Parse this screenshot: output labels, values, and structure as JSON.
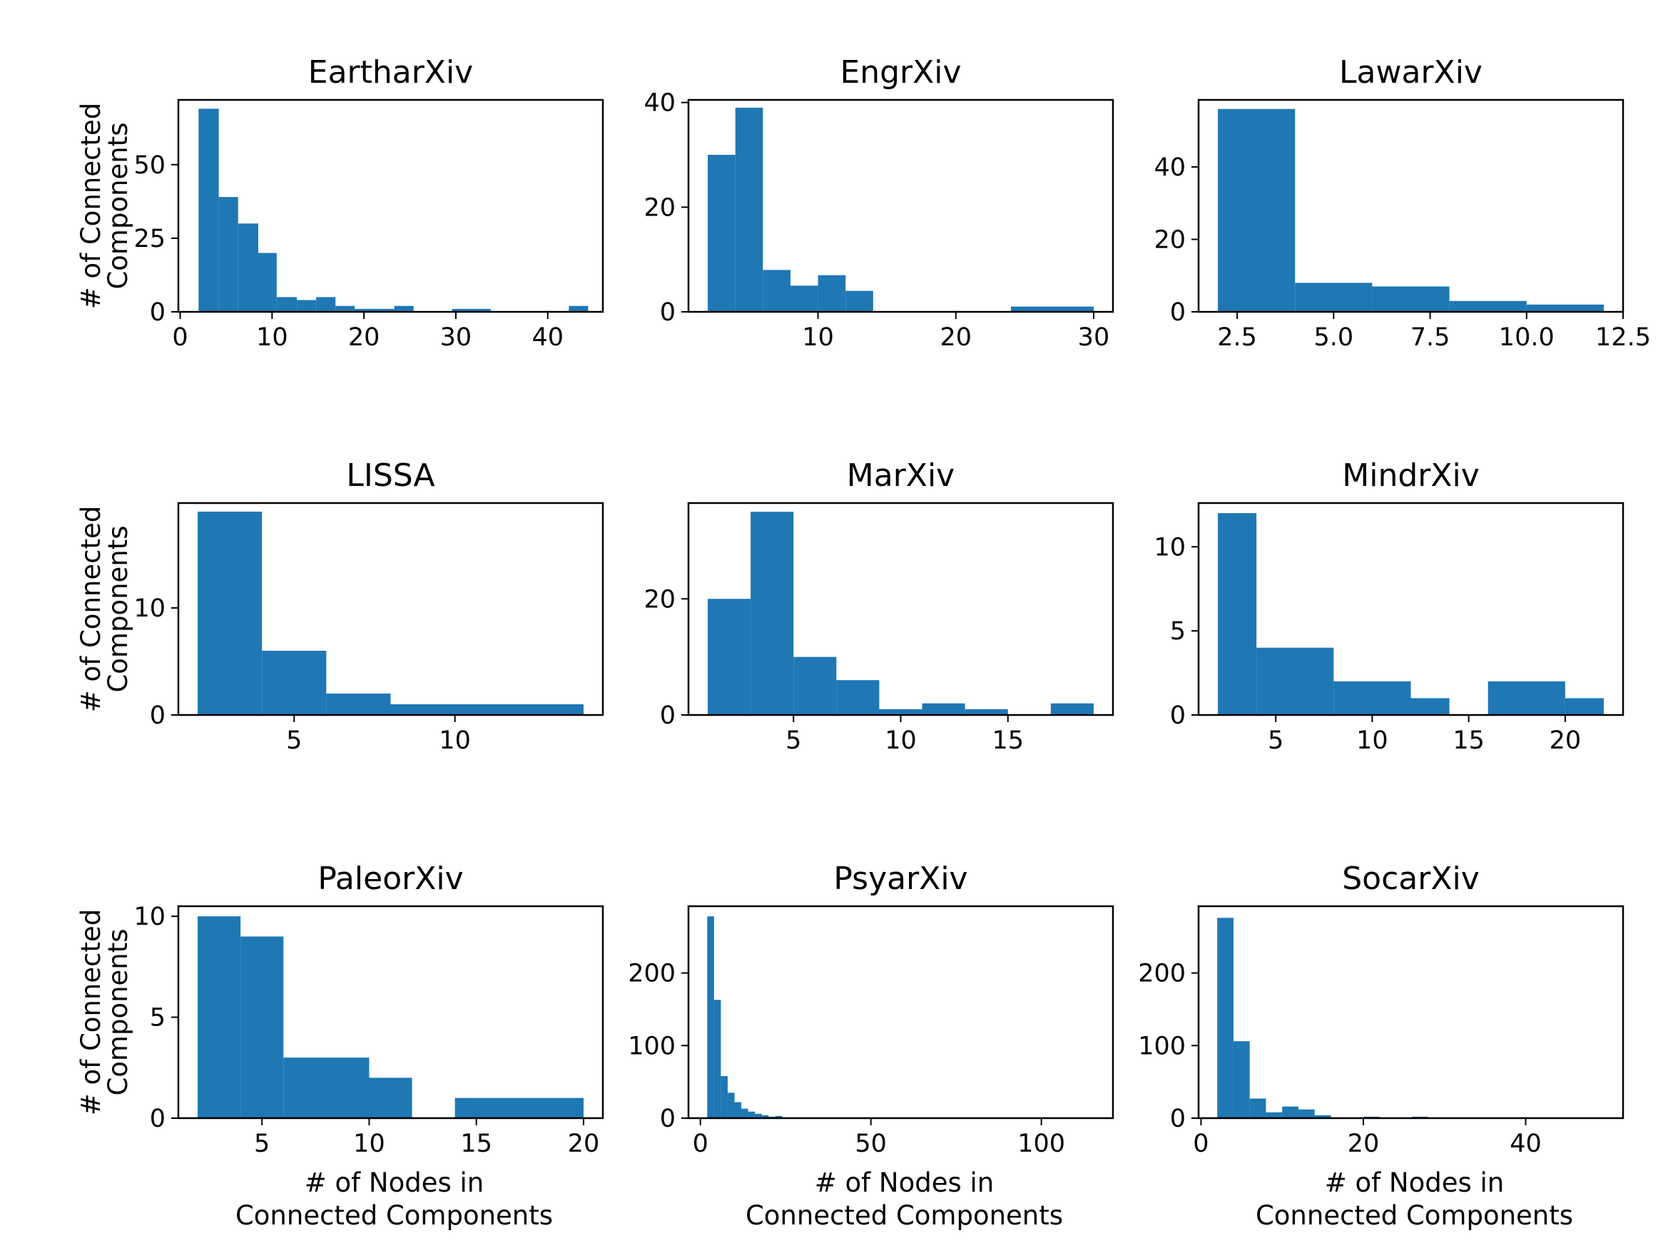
{
  "colors": {
    "bar": "#1f77b4",
    "axis": "#000000",
    "background": "#ffffff"
  },
  "chart_data": [
    {
      "type": "bar",
      "title": "EartharXiv",
      "ylabel": [
        "# of Connected",
        "Components"
      ],
      "xlabel": [],
      "xlim": [
        -0.2,
        46
      ],
      "ylim": [
        0,
        72
      ],
      "xticks": [
        0,
        10,
        20,
        30,
        40
      ],
      "xtick_labels": [
        "0",
        "10",
        "20",
        "30",
        "40"
      ],
      "yticks": [
        0,
        25,
        50
      ],
      "ytick_labels": [
        "0",
        "25",
        "50"
      ],
      "bins": [
        {
          "x0": 2,
          "x1": 4.2,
          "y": 69
        },
        {
          "x0": 4.2,
          "x1": 6.3,
          "y": 39
        },
        {
          "x0": 6.3,
          "x1": 8.5,
          "y": 30
        },
        {
          "x0": 8.5,
          "x1": 10.5,
          "y": 20
        },
        {
          "x0": 10.5,
          "x1": 12.7,
          "y": 5
        },
        {
          "x0": 12.7,
          "x1": 14.8,
          "y": 4
        },
        {
          "x0": 14.8,
          "x1": 16.9,
          "y": 5
        },
        {
          "x0": 16.9,
          "x1": 19.0,
          "y": 2
        },
        {
          "x0": 19.0,
          "x1": 21.2,
          "y": 1
        },
        {
          "x0": 21.2,
          "x1": 23.3,
          "y": 1
        },
        {
          "x0": 23.3,
          "x1": 25.4,
          "y": 2
        },
        {
          "x0": 29.6,
          "x1": 31.7,
          "y": 1
        },
        {
          "x0": 31.7,
          "x1": 33.8,
          "y": 1
        },
        {
          "x0": 42.3,
          "x1": 44.4,
          "y": 2
        }
      ]
    },
    {
      "type": "bar",
      "title": "EngrXiv",
      "ylabel": [],
      "xlabel": [],
      "xlim": [
        0.6,
        31.4
      ],
      "ylim": [
        0,
        40.5
      ],
      "xticks": [
        10,
        20,
        30
      ],
      "xtick_labels": [
        "10",
        "20",
        "30"
      ],
      "yticks": [
        0,
        20,
        40
      ],
      "ytick_labels": [
        "0",
        "20",
        "40"
      ],
      "bins": [
        {
          "x0": 2,
          "x1": 4,
          "y": 30
        },
        {
          "x0": 4,
          "x1": 6,
          "y": 39
        },
        {
          "x0": 6,
          "x1": 8,
          "y": 8
        },
        {
          "x0": 8,
          "x1": 10,
          "y": 5
        },
        {
          "x0": 10,
          "x1": 12,
          "y": 7
        },
        {
          "x0": 12,
          "x1": 14,
          "y": 4
        },
        {
          "x0": 24,
          "x1": 30,
          "y": 1
        }
      ]
    },
    {
      "type": "bar",
      "title": "LawarXiv",
      "ylabel": [],
      "xlabel": [],
      "xlim": [
        1.5,
        12.5
      ],
      "ylim": [
        0,
        58.5
      ],
      "xticks": [
        2.5,
        5.0,
        7.5,
        10.0,
        12.5
      ],
      "xtick_labels": [
        "2.5",
        "5.0",
        "7.5",
        "10.0",
        "12.5"
      ],
      "yticks": [
        0,
        20,
        40
      ],
      "ytick_labels": [
        "0",
        "20",
        "40"
      ],
      "bins": [
        {
          "x0": 2,
          "x1": 4,
          "y": 56
        },
        {
          "x0": 4,
          "x1": 6,
          "y": 8
        },
        {
          "x0": 6,
          "x1": 8,
          "y": 7
        },
        {
          "x0": 8,
          "x1": 10,
          "y": 3
        },
        {
          "x0": 10,
          "x1": 12,
          "y": 2
        }
      ]
    },
    {
      "type": "bar",
      "title": "LISSA",
      "ylabel": [
        "# of Connected",
        "Components"
      ],
      "xlabel": [],
      "xlim": [
        1.4,
        14.6
      ],
      "ylim": [
        0,
        19.8
      ],
      "xticks": [
        5,
        10
      ],
      "xtick_labels": [
        "5",
        "10"
      ],
      "yticks": [
        0,
        10
      ],
      "ytick_labels": [
        "0",
        "10"
      ],
      "bins": [
        {
          "x0": 2,
          "x1": 4,
          "y": 19
        },
        {
          "x0": 4,
          "x1": 6,
          "y": 6
        },
        {
          "x0": 6,
          "x1": 8,
          "y": 2
        },
        {
          "x0": 8,
          "x1": 14,
          "y": 1
        }
      ]
    },
    {
      "type": "bar",
      "title": "MarXiv",
      "ylabel": [],
      "xlabel": [],
      "xlim": [
        0.1,
        19.9
      ],
      "ylim": [
        0,
        36.5
      ],
      "xticks": [
        5,
        10,
        15
      ],
      "xtick_labels": [
        "5",
        "10",
        "15"
      ],
      "yticks": [
        0,
        20
      ],
      "ytick_labels": [
        "0",
        "20"
      ],
      "bins": [
        {
          "x0": 1,
          "x1": 3,
          "y": 20
        },
        {
          "x0": 3,
          "x1": 5,
          "y": 35
        },
        {
          "x0": 5,
          "x1": 7,
          "y": 10
        },
        {
          "x0": 7,
          "x1": 9,
          "y": 6
        },
        {
          "x0": 9,
          "x1": 11,
          "y": 1
        },
        {
          "x0": 11,
          "x1": 13,
          "y": 2
        },
        {
          "x0": 13,
          "x1": 15,
          "y": 1
        },
        {
          "x0": 17,
          "x1": 19,
          "y": 2
        }
      ]
    },
    {
      "type": "bar",
      "title": "MindrXiv",
      "ylabel": [],
      "xlabel": [],
      "xlim": [
        1.0,
        23.0
      ],
      "ylim": [
        0,
        12.6
      ],
      "xticks": [
        5,
        10,
        15,
        20
      ],
      "xtick_labels": [
        "5",
        "10",
        "15",
        "20"
      ],
      "yticks": [
        0,
        5,
        10
      ],
      "ytick_labels": [
        "0",
        "5",
        "10"
      ],
      "bins": [
        {
          "x0": 2,
          "x1": 4,
          "y": 12
        },
        {
          "x0": 4,
          "x1": 8,
          "y": 4
        },
        {
          "x0": 8,
          "x1": 12,
          "y": 2
        },
        {
          "x0": 12,
          "x1": 14,
          "y": 1
        },
        {
          "x0": 16,
          "x1": 20,
          "y": 2
        },
        {
          "x0": 20,
          "x1": 22,
          "y": 1
        }
      ]
    },
    {
      "type": "bar",
      "title": "PaleorXiv",
      "ylabel": [
        "# of Connected",
        "Components"
      ],
      "xlabel": [
        "# of Nodes in",
        "Connected Components"
      ],
      "xlim": [
        1.1,
        20.9
      ],
      "ylim": [
        0,
        10.5
      ],
      "xticks": [
        5,
        10,
        15,
        20
      ],
      "xtick_labels": [
        "5",
        "10",
        "15",
        "20"
      ],
      "yticks": [
        0,
        5,
        10
      ],
      "ytick_labels": [
        "0",
        "5",
        "10"
      ],
      "bins": [
        {
          "x0": 2,
          "x1": 4,
          "y": 10
        },
        {
          "x0": 4,
          "x1": 6,
          "y": 9
        },
        {
          "x0": 6,
          "x1": 10,
          "y": 3
        },
        {
          "x0": 10,
          "x1": 12,
          "y": 2
        },
        {
          "x0": 14,
          "x1": 20,
          "y": 1
        }
      ]
    },
    {
      "type": "bar",
      "title": "PsyarXiv",
      "ylabel": [],
      "xlabel": [
        "# of Nodes in",
        "Connected Components"
      ],
      "xlim": [
        -3.5,
        121
      ],
      "ylim": [
        0,
        292
      ],
      "xticks": [
        0,
        50,
        100
      ],
      "xtick_labels": [
        "0",
        "50",
        "100"
      ],
      "yticks": [
        0,
        100,
        200
      ],
      "ytick_labels": [
        "0",
        "100",
        "200"
      ],
      "bins": [
        {
          "x0": 2,
          "x1": 4,
          "y": 278
        },
        {
          "x0": 4,
          "x1": 6,
          "y": 163
        },
        {
          "x0": 6,
          "x1": 8,
          "y": 58
        },
        {
          "x0": 8,
          "x1": 10,
          "y": 35
        },
        {
          "x0": 10,
          "x1": 12,
          "y": 22
        },
        {
          "x0": 12,
          "x1": 14,
          "y": 13
        },
        {
          "x0": 14,
          "x1": 16,
          "y": 9
        },
        {
          "x0": 16,
          "x1": 18,
          "y": 6
        },
        {
          "x0": 18,
          "x1": 20,
          "y": 4
        },
        {
          "x0": 20,
          "x1": 22,
          "y": 2
        },
        {
          "x0": 22,
          "x1": 24,
          "y": 3
        },
        {
          "x0": 24,
          "x1": 115,
          "y": 1
        }
      ]
    },
    {
      "type": "bar",
      "title": "SocarXiv",
      "ylabel": [],
      "xlabel": [
        "# of Nodes in",
        "Connected Components"
      ],
      "xlim": [
        -0.3,
        52
      ],
      "ylim": [
        0,
        292
      ],
      "xticks": [
        0,
        20,
        40
      ],
      "xtick_labels": [
        "0",
        "20",
        "40"
      ],
      "yticks": [
        0,
        100,
        200
      ],
      "ytick_labels": [
        "0",
        "100",
        "200"
      ],
      "bins": [
        {
          "x0": 2,
          "x1": 4,
          "y": 276
        },
        {
          "x0": 4,
          "x1": 6,
          "y": 106
        },
        {
          "x0": 6,
          "x1": 8,
          "y": 27
        },
        {
          "x0": 8,
          "x1": 10,
          "y": 8
        },
        {
          "x0": 10,
          "x1": 12,
          "y": 16
        },
        {
          "x0": 12,
          "x1": 14,
          "y": 12
        },
        {
          "x0": 14,
          "x1": 16,
          "y": 4
        },
        {
          "x0": 16,
          "x1": 20,
          "y": 1
        },
        {
          "x0": 20,
          "x1": 22,
          "y": 2
        },
        {
          "x0": 22,
          "x1": 26,
          "y": 1
        },
        {
          "x0": 26,
          "x1": 28,
          "y": 2
        },
        {
          "x0": 28,
          "x1": 50,
          "y": 1
        }
      ]
    }
  ]
}
